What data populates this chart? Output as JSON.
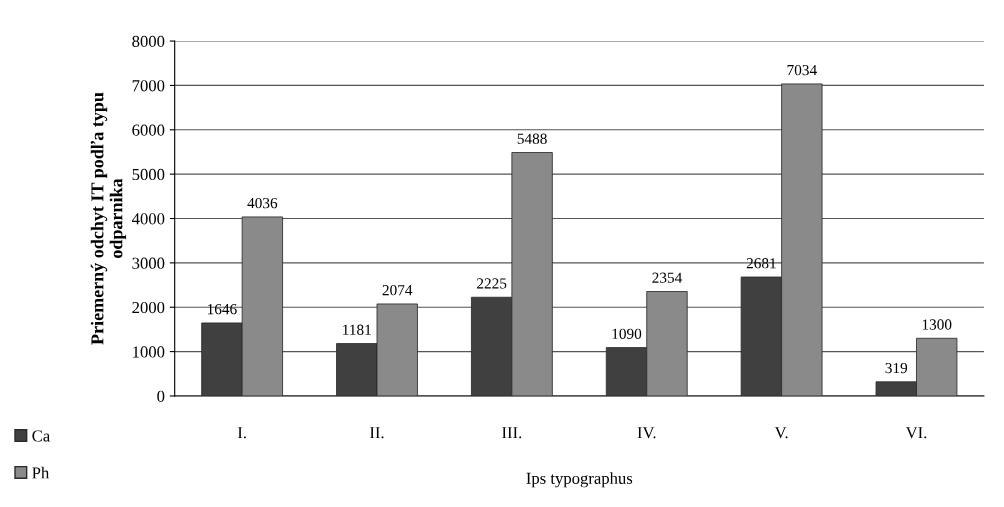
{
  "chart_data": {
    "type": "bar",
    "ylabel": "Priemerný odchyt IT podľa typu\nodparnika",
    "xlabel": "Ips typographus",
    "categories": [
      "I.",
      "II.",
      "III.",
      "IV.",
      "V.",
      "VI."
    ],
    "series": [
      {
        "name": "Ca",
        "color": "#404040",
        "values": [
          1646,
          1181,
          2225,
          1090,
          2681,
          319
        ]
      },
      {
        "name": "Ph",
        "color": "#8a8a8a",
        "values": [
          4036,
          2074,
          5488,
          2354,
          7034,
          1300
        ]
      }
    ],
    "ylim": [
      0,
      8000
    ],
    "yticks": [
      0,
      1000,
      2000,
      3000,
      4000,
      5000,
      6000,
      7000,
      8000
    ],
    "grid": "y",
    "legend": "bottom left",
    "data_labels": true
  }
}
